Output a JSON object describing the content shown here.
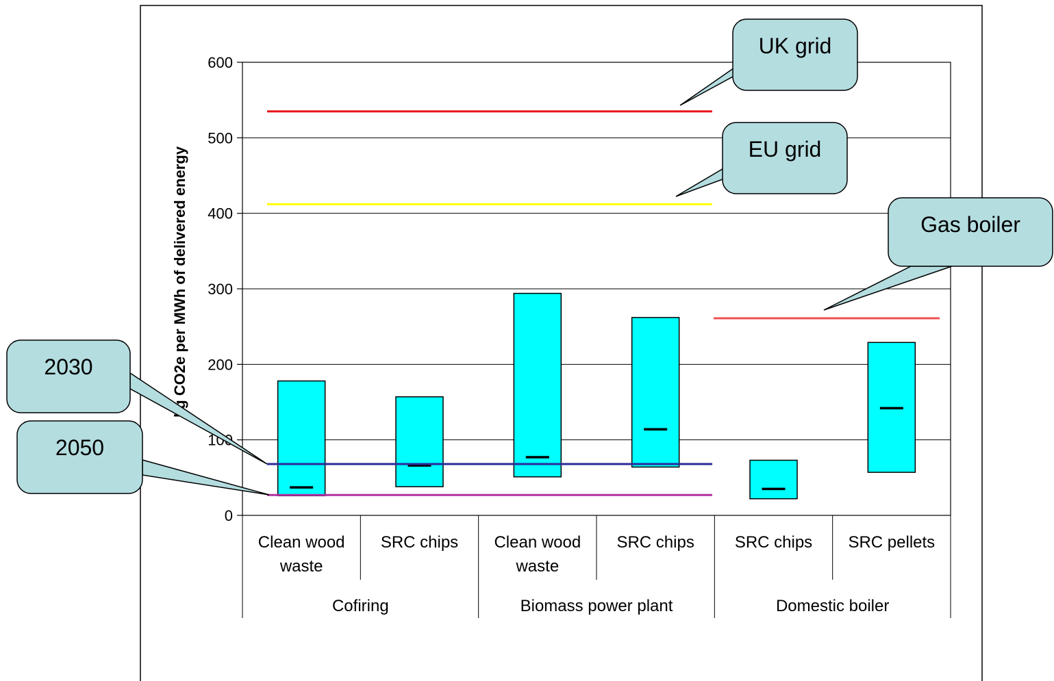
{
  "chart_data": {
    "type": "bar",
    "subtype": "floating-range-with-midpoint",
    "ylabel": "kg CO2e per MWh of delivered energy",
    "ylim": [
      0,
      600
    ],
    "yticks": [
      0,
      100,
      200,
      300,
      400,
      500,
      600
    ],
    "grid": true,
    "groups": [
      {
        "label": "Cofiring",
        "categories": [
          "Clean wood waste",
          "SRC chips"
        ]
      },
      {
        "label": "Biomass power plant",
        "categories": [
          "Clean wood waste",
          "SRC chips"
        ]
      },
      {
        "label": "Domestic boiler",
        "categories": [
          "SRC chips",
          "SRC pellets"
        ]
      }
    ],
    "category_labels": [
      [
        "Clean wood",
        "waste"
      ],
      [
        "SRC chips"
      ],
      [
        "Clean wood",
        "waste"
      ],
      [
        "SRC chips"
      ],
      [
        "SRC chips"
      ],
      [
        "SRC pellets"
      ]
    ],
    "ranges": [
      {
        "low": 26,
        "high": 178,
        "mid": 37
      },
      {
        "low": 38,
        "high": 157,
        "mid": 66
      },
      {
        "low": 51,
        "high": 294,
        "mid": 77
      },
      {
        "low": 64,
        "high": 262,
        "mid": 114
      },
      {
        "low": 22,
        "high": 73,
        "mid": 35
      },
      {
        "low": 57,
        "high": 229,
        "mid": 142
      }
    ],
    "reference_lines": [
      {
        "label": "UK grid",
        "value": 535,
        "color": "#e8141c",
        "from_cat": 0,
        "to_cat": 3
      },
      {
        "label": "EU grid",
        "value": 412,
        "color": "#ffff00",
        "from_cat": 0,
        "to_cat": 3
      },
      {
        "label": "Gas boiler",
        "value": 261,
        "color": "#f05050",
        "from_cat": 4,
        "to_cat": 5
      },
      {
        "label": "2030",
        "value": 68,
        "color": "#2a2a9a",
        "from_cat": 0,
        "to_cat": 3
      },
      {
        "label": "2050",
        "value": 27,
        "color": "#b030a0",
        "from_cat": 0,
        "to_cat": 3
      }
    ],
    "colors": {
      "bar_fill": "#00ffff",
      "callout_fill": "#b4dde0",
      "gridline": "#000000"
    }
  }
}
